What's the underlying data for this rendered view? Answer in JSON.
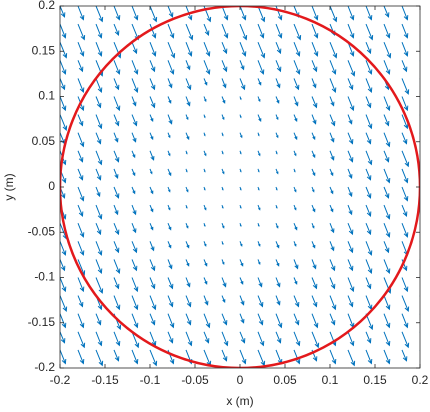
{
  "chart_data": {
    "type": "quiver",
    "xlabel": "x (m)",
    "ylabel": "y (m)",
    "xlim": [
      -0.2,
      0.2
    ],
    "ylim": [
      -0.2,
      0.2
    ],
    "xticks": [
      -0.2,
      -0.15,
      -0.1,
      -0.05,
      0,
      0.05,
      0.1,
      0.15,
      0.2
    ],
    "yticks": [
      -0.2,
      -0.15,
      -0.1,
      -0.05,
      0,
      0.05,
      0.1,
      0.15,
      0.2
    ],
    "color": "#0072bd",
    "x": [
      -0.2,
      -0.18,
      -0.16,
      -0.14,
      -0.12,
      -0.1,
      -0.08,
      -0.06,
      -0.04,
      -0.02,
      0,
      0.02,
      0.04,
      0.06,
      0.08,
      0.1,
      0.12,
      0.14,
      0.16,
      0.18,
      0.2
    ],
    "y": [
      0.2,
      0.18,
      0.16,
      0.14,
      0.12,
      0.1,
      0.08,
      0.06,
      0.04,
      0.02,
      0,
      -0.02,
      -0.04,
      -0.06,
      -0.08,
      -0.1,
      -0.12,
      -0.14,
      -0.16,
      -0.18,
      -0.2
    ],
    "u": [
      [
        0.005,
        0.006,
        0.007,
        0.006,
        0.006,
        0.007,
        0.005,
        0.006,
        0.007,
        0.006,
        0.006,
        0.007,
        0.006,
        0.005,
        0.006,
        0.007,
        0.006,
        0.006,
        0.005,
        0.006,
        0.007
      ],
      [
        0.006,
        0.007,
        0.006,
        0.005,
        0.007,
        0.006,
        0.006,
        0.007,
        0.005,
        0.006,
        0.007,
        0.006,
        0.006,
        0.007,
        0.006,
        0.005,
        0.006,
        0.007,
        0.006,
        0.006,
        0.005
      ],
      [
        0.007,
        0.006,
        0.006,
        0.007,
        0.005,
        0.006,
        0.007,
        0.006,
        0.006,
        0.005,
        0.006,
        0.007,
        0.005,
        0.006,
        0.006,
        0.007,
        0.006,
        0.005,
        0.007,
        0.006,
        0.006
      ],
      [
        0.006,
        0.005,
        0.007,
        0.006,
        0.006,
        0.005,
        0.006,
        0.004,
        0.006,
        0.005,
        0.004,
        0.006,
        0.005,
        0.006,
        0.005,
        0.006,
        0.007,
        0.006,
        0.006,
        0.005,
        0.007
      ],
      [
        0.005,
        0.006,
        0.006,
        0.005,
        0.006,
        0.005,
        0.004,
        0.005,
        0.003,
        0.004,
        0.005,
        0.003,
        0.004,
        0.005,
        0.004,
        0.006,
        0.005,
        0.006,
        0.005,
        0.007,
        0.006
      ],
      [
        0.006,
        0.006,
        0.005,
        0.006,
        0.004,
        0.005,
        0.003,
        0.004,
        0.002,
        0.003,
        0.001,
        0.002,
        0.003,
        0.004,
        0.005,
        0.004,
        0.006,
        0.005,
        0.006,
        0.006,
        0.005
      ],
      [
        0.007,
        0.005,
        0.006,
        0.005,
        0.005,
        0.003,
        0.004,
        0.002,
        0.001,
        0.002,
        0.001,
        0.003,
        0.002,
        0.003,
        0.004,
        0.005,
        0.004,
        0.006,
        0.005,
        0.006,
        0.007
      ],
      [
        0.005,
        0.006,
        0.005,
        0.004,
        0.004,
        0.003,
        0.002,
        0.003,
        0.001,
        0.001,
        0.002,
        0.001,
        0.002,
        0.003,
        0.003,
        0.004,
        0.005,
        0.005,
        0.006,
        0.005,
        0.006
      ],
      [
        0.006,
        0.005,
        0.006,
        0.005,
        0.003,
        0.004,
        0.002,
        0.001,
        0.002,
        0.001,
        0.001,
        0.002,
        0.001,
        0.002,
        0.003,
        0.004,
        0.005,
        0.006,
        0.005,
        0.007,
        0.006
      ],
      [
        0.006,
        0.005,
        0.005,
        0.004,
        0.003,
        0.002,
        0.003,
        0.001,
        0.001,
        0.002,
        0.001,
        0.001,
        0.002,
        0.001,
        0.003,
        0.003,
        0.004,
        0.005,
        0.006,
        0.006,
        0.005
      ],
      [
        0.005,
        0.006,
        0.004,
        0.005,
        0.003,
        0.003,
        0.002,
        0.002,
        0.001,
        0.001,
        0.001,
        0.001,
        0.001,
        0.002,
        0.002,
        0.003,
        0.004,
        0.005,
        0.005,
        0.006,
        0.006
      ],
      [
        0.006,
        0.005,
        0.006,
        0.004,
        0.004,
        0.003,
        0.002,
        0.001,
        0.002,
        0.001,
        0.001,
        0.002,
        0.001,
        0.002,
        0.003,
        0.003,
        0.004,
        0.005,
        0.006,
        0.005,
        0.006
      ],
      [
        0.007,
        0.006,
        0.005,
        0.005,
        0.004,
        0.003,
        0.003,
        0.002,
        0.001,
        0.002,
        0.001,
        0.001,
        0.002,
        0.003,
        0.002,
        0.004,
        0.005,
        0.005,
        0.006,
        0.006,
        0.005
      ],
      [
        0.006,
        0.006,
        0.006,
        0.005,
        0.005,
        0.004,
        0.003,
        0.003,
        0.002,
        0.001,
        0.002,
        0.002,
        0.003,
        0.002,
        0.003,
        0.004,
        0.005,
        0.006,
        0.005,
        0.006,
        0.007
      ],
      [
        0.005,
        0.007,
        0.006,
        0.006,
        0.005,
        0.005,
        0.004,
        0.003,
        0.003,
        0.002,
        0.003,
        0.002,
        0.003,
        0.004,
        0.004,
        0.005,
        0.005,
        0.006,
        0.006,
        0.005,
        0.006
      ],
      [
        0.006,
        0.006,
        0.007,
        0.005,
        0.006,
        0.005,
        0.005,
        0.004,
        0.003,
        0.004,
        0.003,
        0.004,
        0.004,
        0.003,
        0.005,
        0.005,
        0.006,
        0.005,
        0.007,
        0.006,
        0.006
      ],
      [
        0.007,
        0.005,
        0.006,
        0.006,
        0.006,
        0.006,
        0.005,
        0.005,
        0.004,
        0.003,
        0.004,
        0.005,
        0.004,
        0.005,
        0.005,
        0.006,
        0.005,
        0.006,
        0.006,
        0.007,
        0.005
      ],
      [
        0.006,
        0.006,
        0.005,
        0.007,
        0.006,
        0.005,
        0.006,
        0.005,
        0.006,
        0.005,
        0.004,
        0.005,
        0.006,
        0.005,
        0.006,
        0.005,
        0.006,
        0.007,
        0.006,
        0.006,
        0.006
      ],
      [
        0.005,
        0.007,
        0.006,
        0.006,
        0.007,
        0.006,
        0.005,
        0.006,
        0.005,
        0.006,
        0.005,
        0.006,
        0.005,
        0.006,
        0.007,
        0.006,
        0.006,
        0.005,
        0.006,
        0.007,
        0.006
      ],
      [
        0.006,
        0.006,
        0.007,
        0.005,
        0.006,
        0.007,
        0.006,
        0.006,
        0.007,
        0.005,
        0.006,
        0.007,
        0.006,
        0.006,
        0.005,
        0.006,
        0.007,
        0.006,
        0.006,
        0.005,
        0.007
      ],
      [
        0.007,
        0.006,
        0.006,
        0.007,
        0.006,
        0.005,
        0.007,
        0.006,
        0.006,
        0.007,
        0.006,
        0.006,
        0.005,
        0.007,
        0.006,
        0.006,
        0.005,
        0.007,
        0.006,
        0.006,
        0.006
      ]
    ],
    "v": [
      [
        -0.012,
        -0.015,
        -0.017,
        -0.015,
        -0.015,
        -0.017,
        -0.012,
        -0.015,
        -0.017,
        -0.015,
        -0.015,
        -0.017,
        -0.015,
        -0.012,
        -0.015,
        -0.017,
        -0.015,
        -0.015,
        -0.012,
        -0.015,
        -0.017
      ],
      [
        -0.015,
        -0.017,
        -0.015,
        -0.012,
        -0.017,
        -0.015,
        -0.015,
        -0.017,
        -0.012,
        -0.015,
        -0.017,
        -0.015,
        -0.015,
        -0.017,
        -0.015,
        -0.012,
        -0.015,
        -0.017,
        -0.015,
        -0.015,
        -0.012
      ],
      [
        -0.017,
        -0.015,
        -0.015,
        -0.017,
        -0.012,
        -0.015,
        -0.017,
        -0.015,
        -0.015,
        -0.012,
        -0.015,
        -0.017,
        -0.012,
        -0.015,
        -0.015,
        -0.017,
        -0.015,
        -0.012,
        -0.017,
        -0.015,
        -0.015
      ],
      [
        -0.015,
        -0.012,
        -0.017,
        -0.015,
        -0.015,
        -0.012,
        -0.015,
        -0.01,
        -0.015,
        -0.012,
        -0.01,
        -0.015,
        -0.012,
        -0.015,
        -0.012,
        -0.015,
        -0.017,
        -0.015,
        -0.015,
        -0.012,
        -0.017
      ],
      [
        -0.012,
        -0.015,
        -0.015,
        -0.012,
        -0.015,
        -0.012,
        -0.01,
        -0.012,
        -0.007,
        -0.01,
        -0.012,
        -0.007,
        -0.01,
        -0.012,
        -0.01,
        -0.015,
        -0.012,
        -0.015,
        -0.012,
        -0.017,
        -0.015
      ],
      [
        -0.015,
        -0.015,
        -0.012,
        -0.015,
        -0.01,
        -0.012,
        -0.007,
        -0.01,
        -0.005,
        -0.007,
        -0.003,
        -0.005,
        -0.007,
        -0.01,
        -0.012,
        -0.01,
        -0.015,
        -0.012,
        -0.015,
        -0.015,
        -0.012
      ],
      [
        -0.017,
        -0.012,
        -0.015,
        -0.012,
        -0.012,
        -0.007,
        -0.01,
        -0.005,
        -0.003,
        -0.005,
        -0.003,
        -0.007,
        -0.005,
        -0.007,
        -0.01,
        -0.012,
        -0.01,
        -0.015,
        -0.012,
        -0.015,
        -0.017
      ],
      [
        -0.012,
        -0.015,
        -0.012,
        -0.01,
        -0.01,
        -0.007,
        -0.005,
        -0.007,
        -0.003,
        -0.003,
        -0.005,
        -0.003,
        -0.005,
        -0.007,
        -0.007,
        -0.01,
        -0.012,
        -0.012,
        -0.015,
        -0.012,
        -0.015
      ],
      [
        -0.015,
        -0.012,
        -0.015,
        -0.012,
        -0.007,
        -0.01,
        -0.005,
        -0.003,
        -0.005,
        -0.003,
        -0.003,
        -0.005,
        -0.003,
        -0.005,
        -0.007,
        -0.01,
        -0.012,
        -0.015,
        -0.012,
        -0.017,
        -0.015
      ],
      [
        -0.015,
        -0.012,
        -0.012,
        -0.01,
        -0.007,
        -0.005,
        -0.007,
        -0.003,
        -0.003,
        -0.005,
        -0.003,
        -0.003,
        -0.005,
        -0.003,
        -0.007,
        -0.007,
        -0.01,
        -0.012,
        -0.015,
        -0.015,
        -0.012
      ],
      [
        -0.012,
        -0.015,
        -0.01,
        -0.012,
        -0.007,
        -0.007,
        -0.005,
        -0.005,
        -0.003,
        -0.003,
        -0.003,
        -0.003,
        -0.003,
        -0.005,
        -0.005,
        -0.007,
        -0.01,
        -0.012,
        -0.012,
        -0.015,
        -0.015
      ],
      [
        -0.015,
        -0.012,
        -0.015,
        -0.01,
        -0.01,
        -0.007,
        -0.005,
        -0.003,
        -0.005,
        -0.003,
        -0.003,
        -0.005,
        -0.003,
        -0.005,
        -0.007,
        -0.007,
        -0.01,
        -0.012,
        -0.015,
        -0.012,
        -0.015
      ],
      [
        -0.017,
        -0.015,
        -0.012,
        -0.012,
        -0.01,
        -0.007,
        -0.007,
        -0.005,
        -0.003,
        -0.005,
        -0.003,
        -0.003,
        -0.005,
        -0.007,
        -0.005,
        -0.01,
        -0.012,
        -0.012,
        -0.015,
        -0.015,
        -0.012
      ],
      [
        -0.015,
        -0.015,
        -0.015,
        -0.012,
        -0.012,
        -0.01,
        -0.007,
        -0.007,
        -0.005,
        -0.003,
        -0.005,
        -0.005,
        -0.007,
        -0.005,
        -0.007,
        -0.01,
        -0.012,
        -0.015,
        -0.012,
        -0.015,
        -0.017
      ],
      [
        -0.012,
        -0.017,
        -0.015,
        -0.015,
        -0.012,
        -0.012,
        -0.01,
        -0.007,
        -0.007,
        -0.005,
        -0.007,
        -0.005,
        -0.007,
        -0.01,
        -0.01,
        -0.012,
        -0.012,
        -0.015,
        -0.015,
        -0.012,
        -0.015
      ],
      [
        -0.015,
        -0.015,
        -0.017,
        -0.012,
        -0.015,
        -0.012,
        -0.012,
        -0.01,
        -0.007,
        -0.01,
        -0.007,
        -0.01,
        -0.01,
        -0.007,
        -0.012,
        -0.012,
        -0.015,
        -0.012,
        -0.017,
        -0.015,
        -0.015
      ],
      [
        -0.017,
        -0.012,
        -0.015,
        -0.015,
        -0.015,
        -0.015,
        -0.012,
        -0.012,
        -0.01,
        -0.007,
        -0.01,
        -0.012,
        -0.01,
        -0.012,
        -0.012,
        -0.015,
        -0.012,
        -0.015,
        -0.015,
        -0.017,
        -0.012
      ],
      [
        -0.015,
        -0.015,
        -0.012,
        -0.017,
        -0.015,
        -0.012,
        -0.015,
        -0.012,
        -0.015,
        -0.012,
        -0.01,
        -0.012,
        -0.015,
        -0.012,
        -0.015,
        -0.012,
        -0.015,
        -0.017,
        -0.015,
        -0.015,
        -0.015
      ],
      [
        -0.012,
        -0.017,
        -0.015,
        -0.015,
        -0.017,
        -0.015,
        -0.012,
        -0.015,
        -0.012,
        -0.015,
        -0.012,
        -0.015,
        -0.012,
        -0.015,
        -0.017,
        -0.015,
        -0.015,
        -0.012,
        -0.015,
        -0.017,
        -0.015
      ],
      [
        -0.015,
        -0.015,
        -0.017,
        -0.012,
        -0.015,
        -0.017,
        -0.015,
        -0.015,
        -0.017,
        -0.012,
        -0.015,
        -0.017,
        -0.015,
        -0.015,
        -0.012,
        -0.015,
        -0.017,
        -0.015,
        -0.015,
        -0.012,
        -0.017
      ],
      [
        -0.017,
        -0.015,
        -0.015,
        -0.017,
        -0.015,
        -0.012,
        -0.017,
        -0.015,
        -0.015,
        -0.017,
        -0.015,
        -0.015,
        -0.012,
        -0.017,
        -0.015,
        -0.015,
        -0.012,
        -0.017,
        -0.015,
        -0.015,
        -0.015
      ]
    ],
    "circle": {
      "center": [
        0,
        0
      ],
      "radius": 0.2,
      "color": "#e3191c"
    }
  }
}
